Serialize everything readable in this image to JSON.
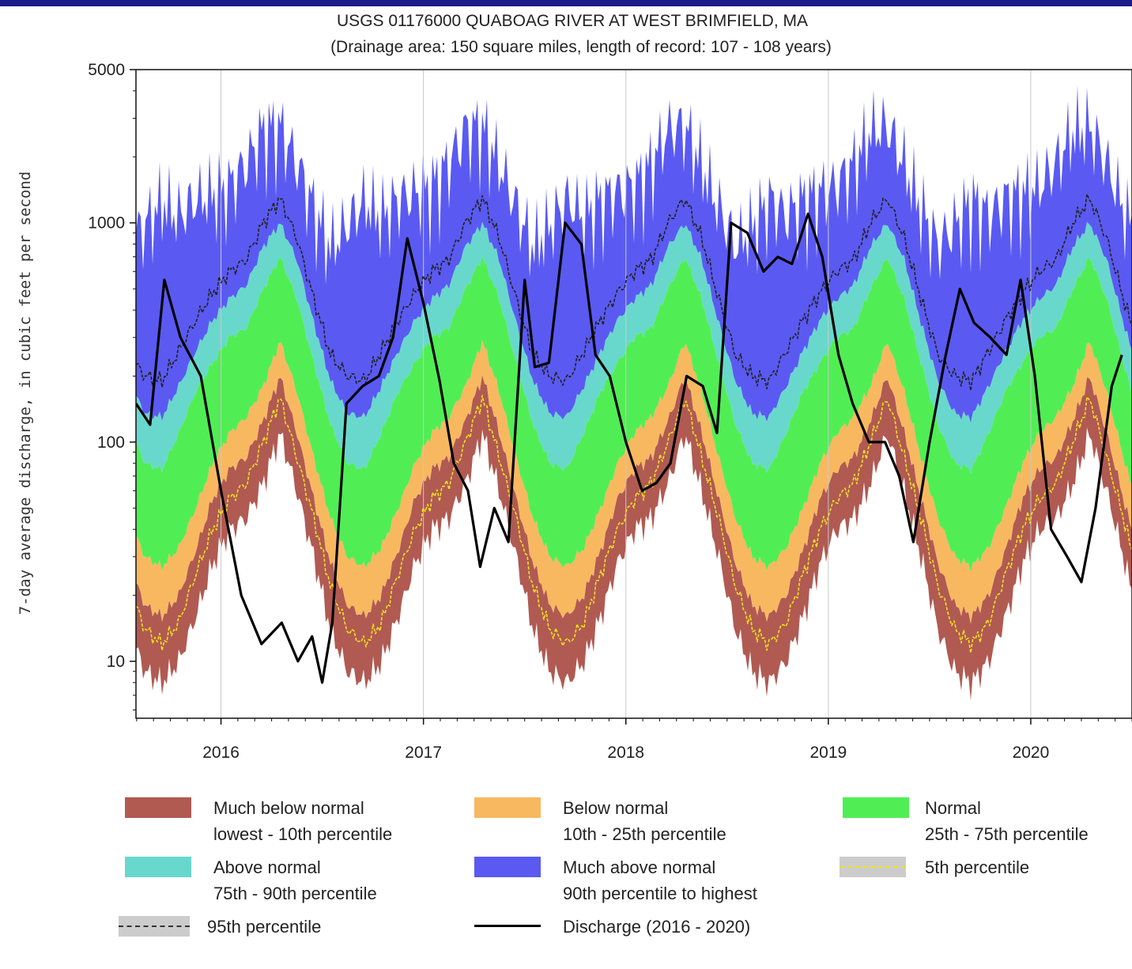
{
  "chart_data": {
    "type": "area",
    "title": "USGS 01176000 QUABOAG RIVER AT WEST BRIMFIELD, MA",
    "subtitle": "(Drainage area: 150 square miles, length of record: 107 - 108 years)",
    "ylabel": "7-day average discharge, in cubic feet per second",
    "yscale": "log",
    "ylim": [
      5.5,
      5000
    ],
    "yticks": [
      10,
      100,
      1000,
      5000
    ],
    "ytick_labels": [
      "10",
      "100",
      "1000",
      "5000"
    ],
    "xlim": [
      2015.58,
      2020.5
    ],
    "xticks": [
      2016,
      2017,
      2018,
      2019,
      2020
    ],
    "xtick_labels": [
      "2016",
      "2017",
      "2018",
      "2019",
      "2020"
    ],
    "grid": "vertical year lines",
    "colors": {
      "much_below": "#b05a52",
      "below": "#f8b860",
      "normal": "#50ee54",
      "above": "#68d8cc",
      "much_above": "#5a5af2",
      "p5": "#f2e020",
      "p95": "#222222",
      "discharge": "#000000"
    },
    "seasonal_percentiles": {
      "note": "percentile bands repeat each year; values by month (Jan..Dec)",
      "month": [
        1,
        2,
        3,
        4,
        5,
        6,
        7,
        8,
        9,
        10,
        11,
        12
      ],
      "min": [
        40,
        45,
        65,
        110,
        60,
        30,
        14,
        9,
        8,
        10,
        16,
        28
      ],
      "p5": [
        55,
        65,
        100,
        160,
        85,
        45,
        22,
        14,
        12,
        15,
        25,
        40
      ],
      "p10": [
        75,
        85,
        125,
        200,
        110,
        55,
        28,
        18,
        16,
        20,
        32,
        55
      ],
      "p25": [
        110,
        130,
        180,
        290,
        170,
        85,
        45,
        30,
        27,
        33,
        50,
        80
      ],
      "p75": [
        300,
        330,
        500,
        700,
        450,
        230,
        120,
        80,
        75,
        110,
        170,
        230
      ],
      "p90": [
        450,
        520,
        780,
        1000,
        680,
        350,
        190,
        135,
        130,
        180,
        260,
        360
      ],
      "p95": [
        600,
        680,
        1000,
        1300,
        850,
        450,
        250,
        200,
        190,
        260,
        360,
        480
      ],
      "max": [
        1500,
        1900,
        2700,
        2800,
        1900,
        1200,
        800,
        1000,
        1300,
        1100,
        1300,
        1400
      ]
    },
    "discharge": {
      "name": "Discharge (2016 - 2020)",
      "x": [
        2015.58,
        2015.65,
        2015.72,
        2015.8,
        2015.9,
        2016.0,
        2016.1,
        2016.2,
        2016.3,
        2016.38,
        2016.45,
        2016.5,
        2016.55,
        2016.62,
        2016.7,
        2016.78,
        2016.85,
        2016.92,
        2017.0,
        2017.08,
        2017.15,
        2017.22,
        2017.28,
        2017.35,
        2017.42,
        2017.5,
        2017.55,
        2017.62,
        2017.7,
        2017.78,
        2017.85,
        2017.92,
        2018.0,
        2018.08,
        2018.15,
        2018.22,
        2018.3,
        2018.38,
        2018.45,
        2018.52,
        2018.6,
        2018.68,
        2018.75,
        2018.82,
        2018.9,
        2018.97,
        2019.05,
        2019.12,
        2019.2,
        2019.28,
        2019.35,
        2019.42,
        2019.5,
        2019.58,
        2019.65,
        2019.72,
        2019.8,
        2019.88,
        2019.95,
        2020.02,
        2020.1,
        2020.18,
        2020.25,
        2020.32,
        2020.4,
        2020.45
      ],
      "y": [
        150,
        120,
        550,
        300,
        200,
        60,
        20,
        12,
        15,
        10,
        13,
        8,
        15,
        150,
        180,
        200,
        300,
        850,
        430,
        190,
        80,
        60,
        27,
        50,
        35,
        550,
        220,
        230,
        1000,
        800,
        250,
        200,
        100,
        60,
        65,
        80,
        200,
        180,
        110,
        1000,
        900,
        600,
        700,
        650,
        1100,
        700,
        250,
        150,
        100,
        100,
        70,
        35,
        100,
        250,
        500,
        350,
        300,
        250,
        550,
        200,
        40,
        30,
        23,
        50,
        180,
        250
      ]
    },
    "legend": [
      {
        "key": "much_below",
        "label": "Much below normal",
        "sublabel": "lowest - 10th percentile"
      },
      {
        "key": "below",
        "label": "Below normal",
        "sublabel": "10th - 25th percentile"
      },
      {
        "key": "normal",
        "label": "Normal",
        "sublabel": "25th - 75th percentile"
      },
      {
        "key": "above",
        "label": "Above normal",
        "sublabel": "75th - 90th percentile"
      },
      {
        "key": "much_above",
        "label": "Much above normal",
        "sublabel": "90th percentile to highest"
      },
      {
        "key": "p5",
        "label": "5th percentile",
        "sublabel": ""
      },
      {
        "key": "p95",
        "label": "95th percentile",
        "sublabel": ""
      },
      {
        "key": "discharge",
        "label": "Discharge (2016 - 2020)",
        "sublabel": ""
      }
    ],
    "legend_placement": "bottom"
  }
}
